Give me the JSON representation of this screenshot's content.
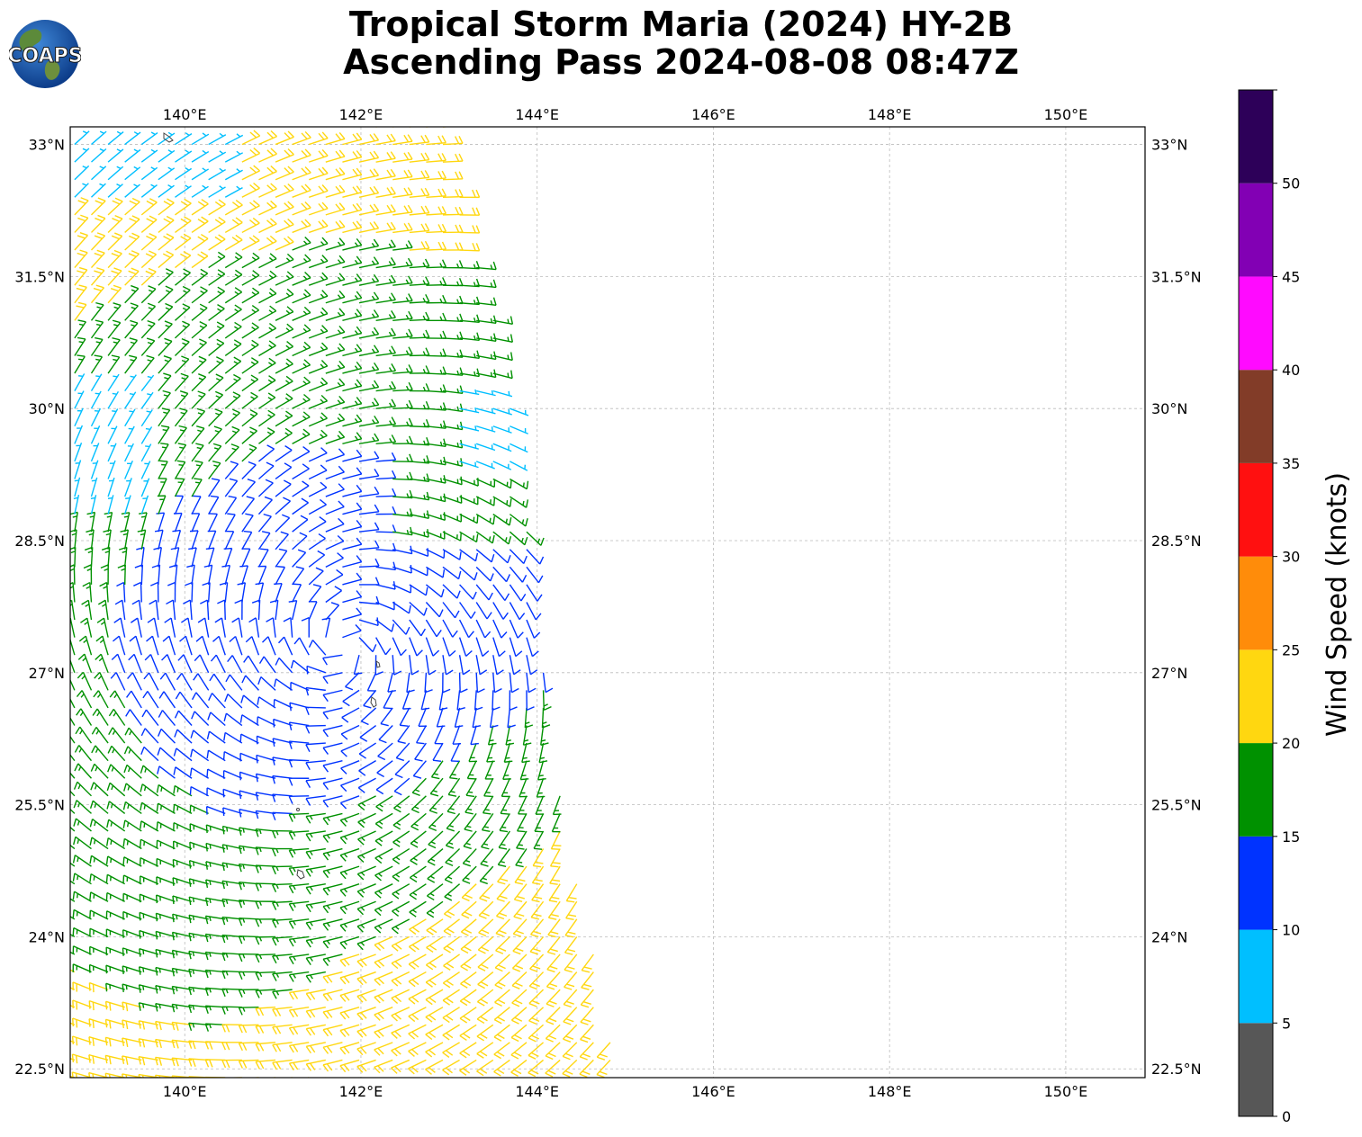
{
  "title": {
    "line1": "Tropical Storm Maria (2024) HY-2B",
    "line2": "Ascending Pass 2024-08-08 08:47Z"
  },
  "logo": {
    "text": "COAPS",
    "icon": "globe-icon"
  },
  "map": {
    "lon_ticks": [
      "140°E",
      "142°E",
      "144°E",
      "146°E",
      "148°E",
      "150°E"
    ],
    "lon_values": [
      140,
      142,
      144,
      146,
      148,
      150
    ],
    "lat_ticks": [
      "33°N",
      "31.5°N",
      "30°N",
      "28.5°N",
      "27°N",
      "25.5°N",
      "24°N",
      "22.5°N"
    ],
    "lat_values": [
      33,
      31.5,
      30,
      28.5,
      27,
      25.5,
      24,
      22.5
    ],
    "lon_range": [
      138.7,
      150.9
    ],
    "lat_range": [
      22.4,
      33.2
    ],
    "storm_center": [
      141.8,
      27.3
    ],
    "swath_east_edge": [
      [
        143.0,
        33.0
      ],
      [
        143.5,
        31.0
      ],
      [
        143.8,
        29.5
      ],
      [
        144.0,
        27.5
      ],
      [
        144.3,
        25.5
      ],
      [
        144.6,
        24.0
      ],
      [
        144.9,
        22.5
      ]
    ]
  },
  "colorbar": {
    "label": "Wind Speed (knots)",
    "ticks": [
      "0",
      "5",
      "10",
      "15",
      "20",
      "25",
      "30",
      "35",
      "40",
      "45",
      "50"
    ],
    "colors": [
      "#575757",
      "#00bfff",
      "#0033ff",
      "#009100",
      "#ffd710",
      "#ff8c0a",
      "#ff1010",
      "#823c28",
      "#ff0aff",
      "#8200b4",
      "#2d0059"
    ],
    "max": 55
  }
}
